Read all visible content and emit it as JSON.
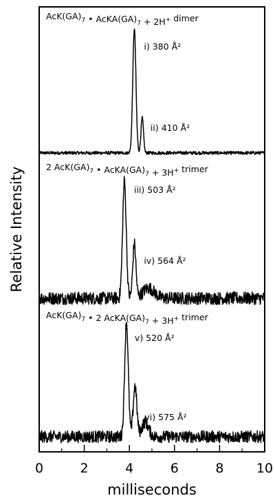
{
  "chart_data": {
    "type": "line",
    "title": "",
    "xlabel": "milliseconds",
    "ylabel": "Relative Intensity",
    "xlim": [
      0,
      10
    ],
    "x_ticks": [
      "0",
      "2",
      "4",
      "6",
      "8",
      "10"
    ],
    "y_ticks": "none",
    "grid": false,
    "panels": [
      {
        "title": {
          "parts": [
            {
              "t": "AcK(GA)"
            },
            {
              "t": "7",
              "sub": true
            },
            {
              "t": " • AcKA(GA)"
            },
            {
              "t": "7",
              "sub": true
            },
            {
              "t": " + 2H"
            },
            {
              "t": "+",
              "sup": true
            },
            {
              "t": " dimer"
            }
          ]
        },
        "noise": 0.012,
        "peaks": [
          {
            "label": "i)",
            "value": "380",
            "unit": "Å²",
            "x": 4.22,
            "height": 0.92,
            "width": 0.07
          },
          {
            "label": "ii)",
            "value": "410",
            "unit": "Å²",
            "x": 4.57,
            "height": 0.26,
            "width": 0.055
          }
        ]
      },
      {
        "title": {
          "parts": [
            {
              "t": "2 AcK(GA)"
            },
            {
              "t": "7",
              "sub": true
            },
            {
              "t": " • AcKA(GA)"
            },
            {
              "t": "7",
              "sub": true
            },
            {
              "t": " + 3H"
            },
            {
              "t": "+",
              "sup": true
            },
            {
              "t": " trimer"
            }
          ]
        },
        "noise": 0.05,
        "peaks": [
          {
            "label": "iii)",
            "value": "503",
            "unit": "Å²",
            "x": 3.78,
            "height": 0.92,
            "width": 0.08
          },
          {
            "label": "iv)",
            "value": "564",
            "unit": "Å²",
            "x": 4.22,
            "height": 0.42,
            "width": 0.07
          },
          {
            "label": "",
            "value": "",
            "unit": "",
            "x": 4.85,
            "height": 0.08,
            "width": 0.25
          }
        ]
      },
      {
        "title": {
          "parts": [
            {
              "t": "AcK(GA)"
            },
            {
              "t": "7",
              "sub": true
            },
            {
              "t": " • 2 AcKA(GA)"
            },
            {
              "t": "7",
              "sub": true
            },
            {
              "t": " + 3H"
            },
            {
              "t": "+",
              "sup": true
            },
            {
              "t": " trimer"
            }
          ]
        },
        "noise": 0.05,
        "peaks": [
          {
            "label": "v)",
            "value": "520",
            "unit": "Å²",
            "x": 3.87,
            "height": 0.95,
            "width": 0.08
          },
          {
            "label": "vi)",
            "value": "575",
            "unit": "Å²",
            "x": 4.25,
            "height": 0.42,
            "width": 0.08
          },
          {
            "label": "",
            "value": "",
            "unit": "",
            "x": 4.7,
            "height": 0.12,
            "width": 0.15
          }
        ]
      }
    ]
  }
}
